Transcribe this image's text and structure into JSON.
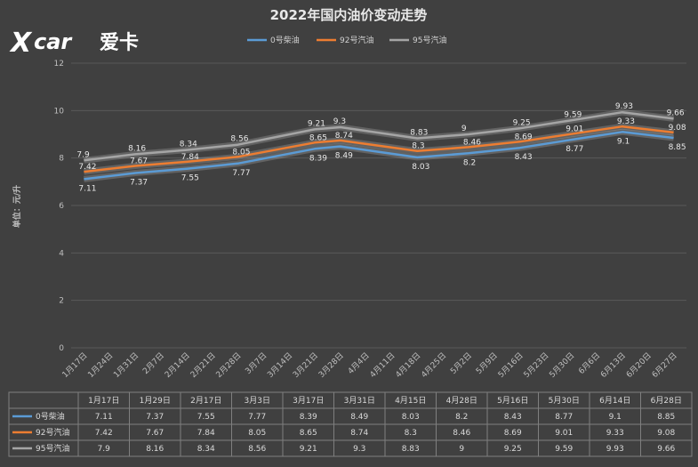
{
  "logo": {
    "mark_x": "X",
    "mark_car": "car",
    "brand_cn": "爱卡"
  },
  "chart_data": {
    "type": "line",
    "title": "2022年国内油价变动走势",
    "ylabel": "单位：元/升",
    "xlabel": "",
    "ylim": [
      0,
      12
    ],
    "yticks": [
      0,
      2,
      4,
      6,
      8,
      10,
      12
    ],
    "grid": true,
    "legend_position": "top",
    "x_axis_labels": [
      "1月17日",
      "1月24日",
      "1月31日",
      "2月7日",
      "2月14日",
      "2月21日",
      "2月28日",
      "3月7日",
      "3月14日",
      "3月21日",
      "3月28日",
      "4月4日",
      "4月11日",
      "4月18日",
      "4月25日",
      "5月2日",
      "5月9日",
      "5月16日",
      "5月23日",
      "5月30日",
      "6月6日",
      "6月13日",
      "6月20日",
      "6月27日"
    ],
    "categories": [
      "1月17日",
      "1月29日",
      "2月17日",
      "3月3日",
      "3月17日",
      "3月31日",
      "4月15日",
      "4月28日",
      "5月16日",
      "5月30日",
      "6月14日",
      "6月28日"
    ],
    "series": [
      {
        "name": "0号柴油",
        "color": "#5b9bd5",
        "values": [
          7.11,
          7.37,
          7.55,
          7.77,
          8.39,
          8.49,
          8.03,
          8.2,
          8.43,
          8.77,
          9.1,
          8.85
        ]
      },
      {
        "name": "92号汽油",
        "color": "#ed7d31",
        "values": [
          7.42,
          7.67,
          7.84,
          8.05,
          8.65,
          8.74,
          8.3,
          8.46,
          8.69,
          9.01,
          9.33,
          9.08
        ]
      },
      {
        "name": "95号汽油",
        "color": "#a5a5a5",
        "values": [
          7.9,
          8.16,
          8.34,
          8.56,
          9.21,
          9.3,
          8.83,
          9,
          9.25,
          9.59,
          9.93,
          9.66
        ]
      }
    ]
  }
}
